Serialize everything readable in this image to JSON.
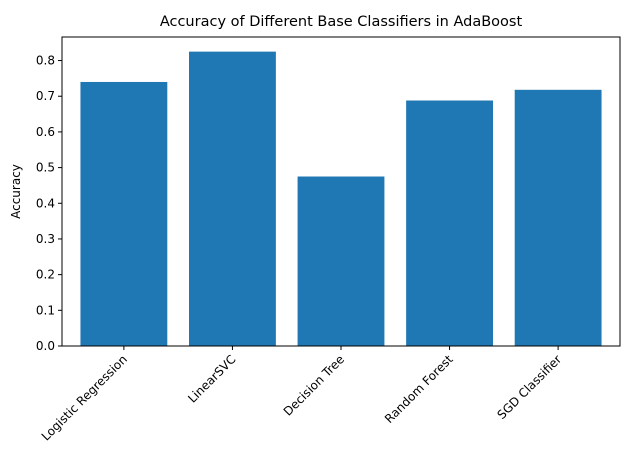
{
  "chart_data": {
    "type": "bar",
    "title": "Accuracy of Different Base Classifiers in AdaBoost",
    "xlabel": "",
    "ylabel": "Accuracy",
    "categories": [
      "Logistic Regression",
      "LinearSVC",
      "Decision Tree",
      "Random Forest",
      "SGD Classifier"
    ],
    "values": [
      0.74,
      0.825,
      0.475,
      0.688,
      0.718
    ],
    "ylim": [
      0,
      0.866
    ],
    "yticks": [
      "0.0",
      "0.1",
      "0.2",
      "0.3",
      "0.4",
      "0.5",
      "0.6",
      "0.7",
      "0.8"
    ],
    "grid": false,
    "legend": "none",
    "bar_color": "#1f77b4"
  }
}
